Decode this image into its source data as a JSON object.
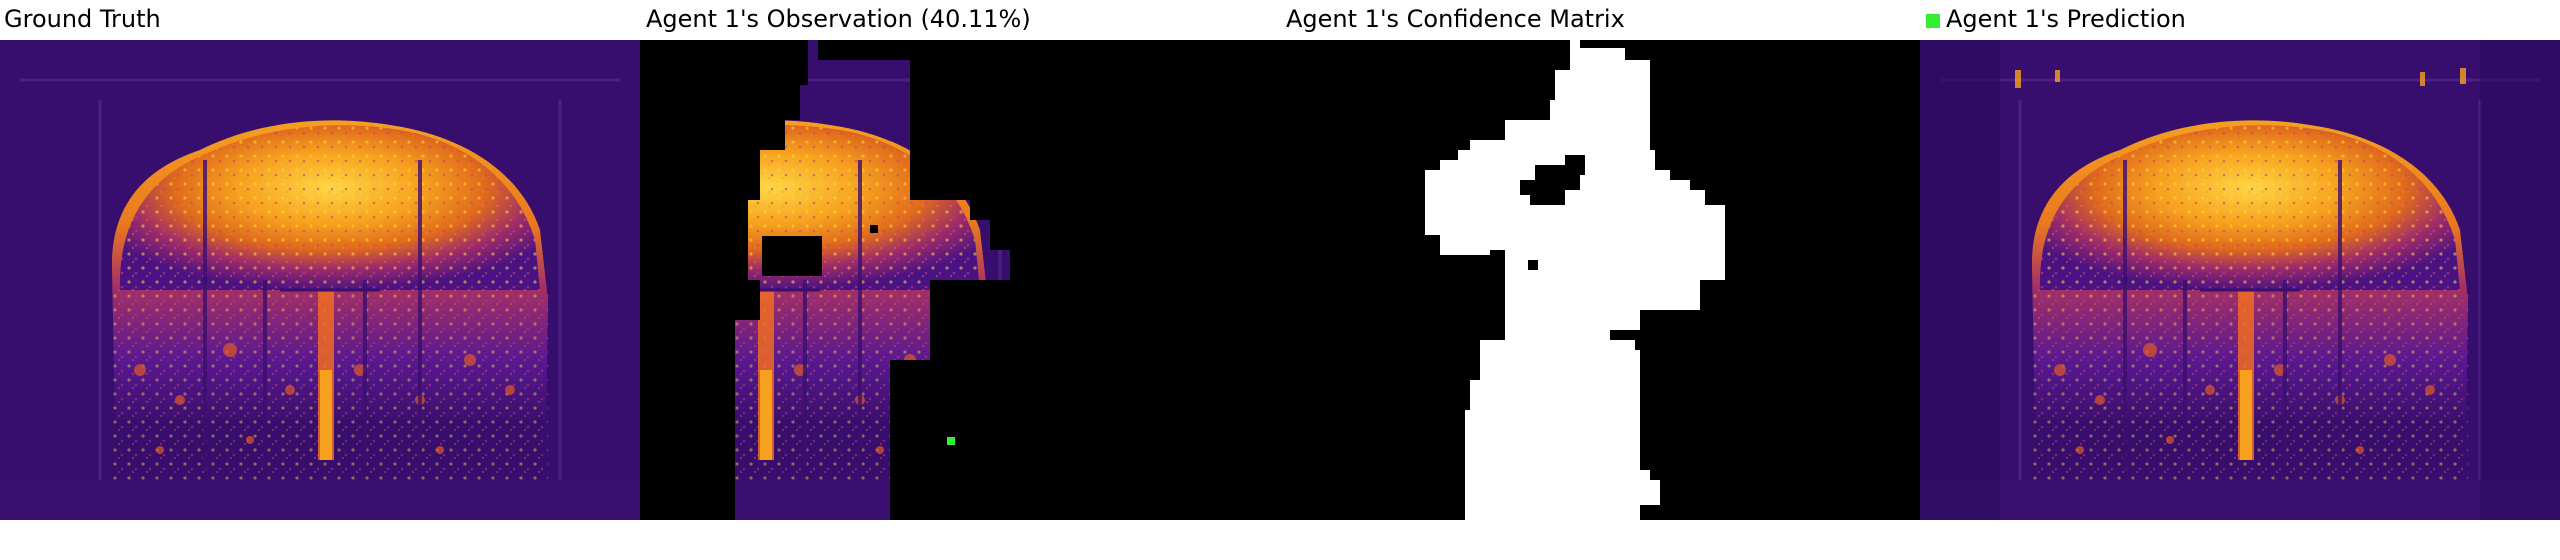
{
  "panels": [
    {
      "title": "Ground Truth"
    },
    {
      "title": "Agent 1's Observation (40.11%)"
    },
    {
      "title": "Agent 1's Confidence Matrix"
    },
    {
      "title": "Agent 1's Prediction",
      "legend_color": "#33ee33"
    }
  ],
  "colors": {
    "background_purple": "#3b0f70",
    "dark_purple": "#2a0a5e",
    "orange": "#f8a41f",
    "yellow": "#fde725",
    "mask_black": "#000000",
    "confidence_white": "#ffffff",
    "agent_marker": "#33ee33"
  }
}
